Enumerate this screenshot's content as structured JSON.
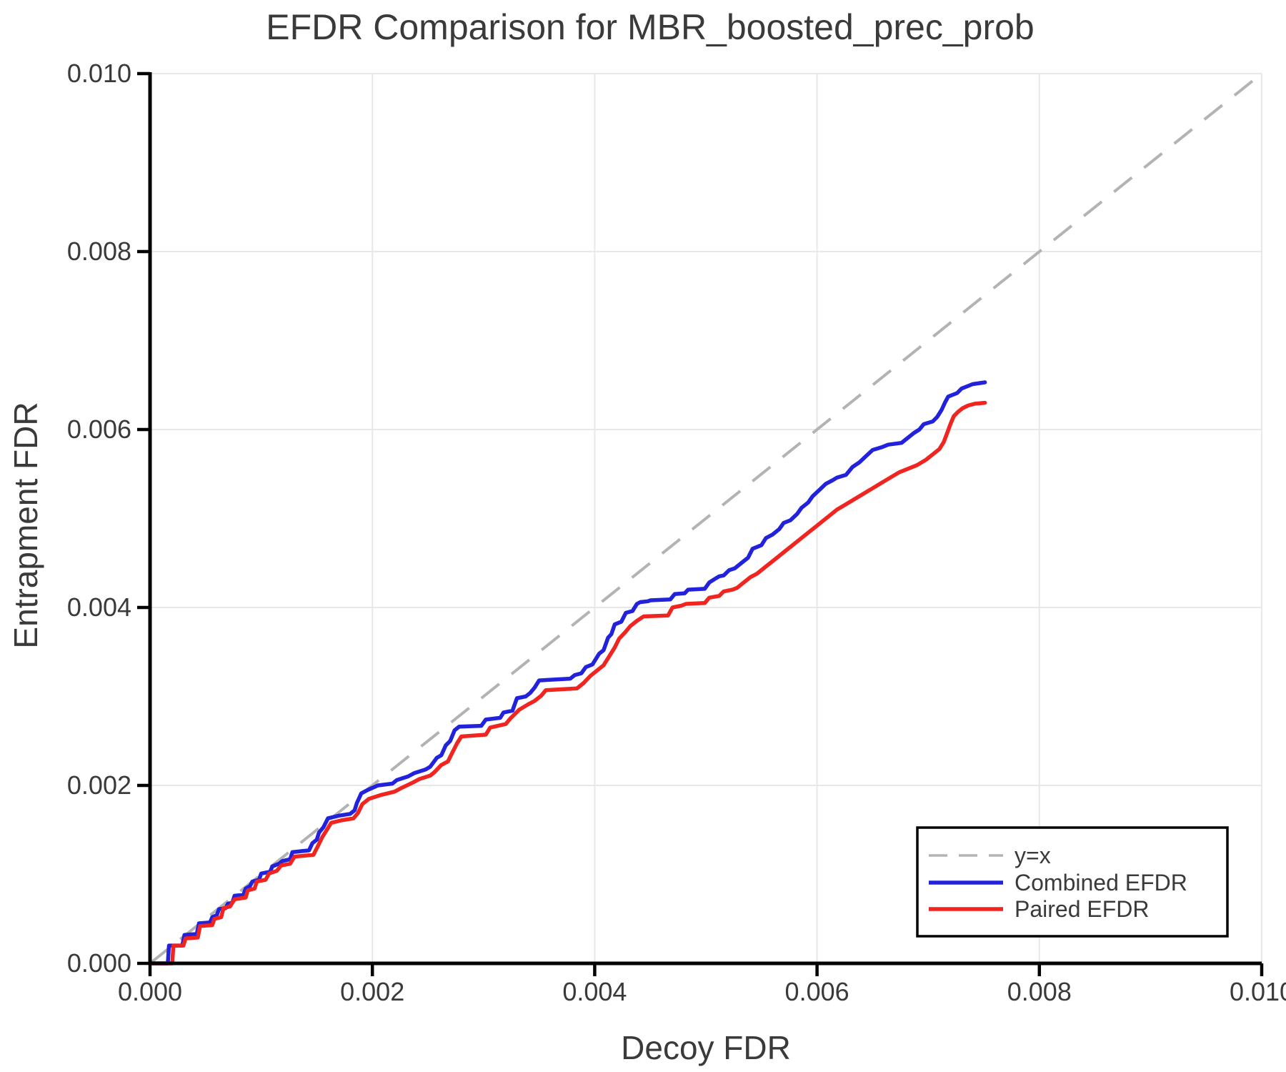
{
  "chart_data": {
    "type": "line",
    "title": "EFDR Comparison for MBR_boosted_prec_prob",
    "xlabel": "Decoy FDR",
    "ylabel": "Entrapment FDR",
    "xlim": [
      0.0,
      0.01
    ],
    "ylim": [
      0.0,
      0.01
    ],
    "grid": true,
    "xticks": [
      0.0,
      0.002,
      0.004,
      0.006,
      0.008,
      0.01
    ],
    "xtick_labels": [
      "0.000",
      "0.002",
      "0.004",
      "0.006",
      "0.008",
      "0.010"
    ],
    "yticks": [
      0.0,
      0.002,
      0.004,
      0.006,
      0.008,
      0.01
    ],
    "ytick_labels": [
      "0.000",
      "0.002",
      "0.004",
      "0.006",
      "0.008",
      "0.010"
    ],
    "colors": {
      "grid": "#e8e8e8",
      "spine": "#000000",
      "text": "#3a3a3a",
      "reference": "#b3b3b3",
      "combined": "#2222dd",
      "paired": "#f02520",
      "legend_border": "#000000",
      "legend_bg": "#ffffff"
    },
    "legend": {
      "position": "lower right",
      "entries": [
        {
          "label": "y=x",
          "color": "#b3b3b3",
          "dashed": true
        },
        {
          "label": "Combined EFDR",
          "color": "#2222dd",
          "dashed": false
        },
        {
          "label": "Paired EFDR",
          "color": "#f02520",
          "dashed": false
        }
      ]
    },
    "series": [
      {
        "name": "y=x",
        "role": "reference",
        "color": "#b3b3b3",
        "dashed": true,
        "points": [
          [
            0.0,
            0.0
          ],
          [
            0.01,
            0.01
          ]
        ]
      },
      {
        "name": "Combined EFDR",
        "role": "data",
        "color": "#2222dd",
        "dashed": false,
        "points": [
          [
            0,
            0
          ],
          [
            0.00016,
            0
          ],
          [
            0.00017,
            0.0002
          ],
          [
            0.00029,
            0.0002
          ],
          [
            0.00031,
            0.00032
          ],
          [
            0.00042,
            0.00033
          ],
          [
            0.00044,
            0.00045
          ],
          [
            0.00054,
            0.00046
          ],
          [
            0.00056,
            0.00052
          ],
          [
            0.0006,
            0.00054
          ],
          [
            0.00062,
            0.00061
          ],
          [
            0.00068,
            0.00062
          ],
          [
            0.0007,
            0.00067
          ],
          [
            0.00074,
            0.00068
          ],
          [
            0.00076,
            0.00076
          ],
          [
            0.00084,
            0.00077
          ],
          [
            0.00086,
            0.00084
          ],
          [
            0.0009,
            0.00087
          ],
          [
            0.00092,
            0.00092
          ],
          [
            0.00098,
            0.00094
          ],
          [
            0.001,
            0.00101
          ],
          [
            0.00108,
            0.00103
          ],
          [
            0.0011,
            0.00109
          ],
          [
            0.00116,
            0.00112
          ],
          [
            0.00119,
            0.00115
          ],
          [
            0.00126,
            0.00117
          ],
          [
            0.00128,
            0.00125
          ],
          [
            0.00143,
            0.00127
          ],
          [
            0.00146,
            0.00135
          ],
          [
            0.0015,
            0.00139
          ],
          [
            0.00152,
            0.00147
          ],
          [
            0.00156,
            0.00153
          ],
          [
            0.0016,
            0.00163
          ],
          [
            0.0017,
            0.00166
          ],
          [
            0.0018,
            0.00168
          ],
          [
            0.00184,
            0.00172
          ],
          [
            0.00186,
            0.0018
          ],
          [
            0.0019,
            0.00191
          ],
          [
            0.00196,
            0.00195
          ],
          [
            0.00205,
            0.002
          ],
          [
            0.00218,
            0.00202
          ],
          [
            0.00222,
            0.00206
          ],
          [
            0.00232,
            0.0021
          ],
          [
            0.00238,
            0.00214
          ],
          [
            0.00248,
            0.00218
          ],
          [
            0.00252,
            0.00221
          ],
          [
            0.00258,
            0.00231
          ],
          [
            0.00262,
            0.00234
          ],
          [
            0.00266,
            0.00245
          ],
          [
            0.0027,
            0.0025
          ],
          [
            0.00274,
            0.00262
          ],
          [
            0.00278,
            0.00266
          ],
          [
            0.00298,
            0.00267
          ],
          [
            0.00302,
            0.00274
          ],
          [
            0.00315,
            0.00276
          ],
          [
            0.00318,
            0.00282
          ],
          [
            0.00326,
            0.00284
          ],
          [
            0.0033,
            0.00298
          ],
          [
            0.00338,
            0.003
          ],
          [
            0.00342,
            0.00304
          ],
          [
            0.00346,
            0.0031
          ],
          [
            0.0035,
            0.00318
          ],
          [
            0.00378,
            0.0032
          ],
          [
            0.00382,
            0.00324
          ],
          [
            0.00388,
            0.00326
          ],
          [
            0.00392,
            0.00333
          ],
          [
            0.00398,
            0.00336
          ],
          [
            0.00404,
            0.00348
          ],
          [
            0.00408,
            0.00352
          ],
          [
            0.00412,
            0.00366
          ],
          [
            0.00415,
            0.0037
          ],
          [
            0.00418,
            0.00381
          ],
          [
            0.00424,
            0.00384
          ],
          [
            0.00428,
            0.00394
          ],
          [
            0.00434,
            0.00396
          ],
          [
            0.00438,
            0.00404
          ],
          [
            0.00441,
            0.00406
          ],
          [
            0.00448,
            0.00407
          ],
          [
            0.0045,
            0.00408
          ],
          [
            0.00468,
            0.00409
          ],
          [
            0.00472,
            0.00415
          ],
          [
            0.00481,
            0.00416
          ],
          [
            0.00484,
            0.0042
          ],
          [
            0.00499,
            0.00421
          ],
          [
            0.00503,
            0.00428
          ],
          [
            0.00508,
            0.00432
          ],
          [
            0.00512,
            0.00435
          ],
          [
            0.00516,
            0.00436
          ],
          [
            0.00521,
            0.00442
          ],
          [
            0.00526,
            0.00444
          ],
          [
            0.0053,
            0.00448
          ],
          [
            0.00538,
            0.00456
          ],
          [
            0.00542,
            0.00466
          ],
          [
            0.0055,
            0.0047
          ],
          [
            0.00554,
            0.00478
          ],
          [
            0.0056,
            0.00482
          ],
          [
            0.00566,
            0.00488
          ],
          [
            0.0057,
            0.00495
          ],
          [
            0.00576,
            0.00498
          ],
          [
            0.00582,
            0.00505
          ],
          [
            0.00586,
            0.00512
          ],
          [
            0.00592,
            0.00518
          ],
          [
            0.00596,
            0.00525
          ],
          [
            0.00602,
            0.00532
          ],
          [
            0.00608,
            0.00539
          ],
          [
            0.00614,
            0.00543
          ],
          [
            0.00618,
            0.00546
          ],
          [
            0.00626,
            0.00549
          ],
          [
            0.00632,
            0.00558
          ],
          [
            0.00638,
            0.00563
          ],
          [
            0.00644,
            0.0057
          ],
          [
            0.0065,
            0.00577
          ],
          [
            0.00658,
            0.0058
          ],
          [
            0.00664,
            0.00583
          ],
          [
            0.00676,
            0.00585
          ],
          [
            0.00682,
            0.00591
          ],
          [
            0.00687,
            0.00596
          ],
          [
            0.00692,
            0.006
          ],
          [
            0.00696,
            0.00606
          ],
          [
            0.00704,
            0.00609
          ],
          [
            0.00708,
            0.00614
          ],
          [
            0.00712,
            0.00622
          ],
          [
            0.00715,
            0.0063
          ],
          [
            0.00718,
            0.00637
          ],
          [
            0.00726,
            0.00641
          ],
          [
            0.0073,
            0.00646
          ],
          [
            0.00736,
            0.00649
          ],
          [
            0.0074,
            0.00651
          ],
          [
            0.00751,
            0.00653
          ]
        ]
      },
      {
        "name": "Paired EFDR",
        "role": "data",
        "color": "#f02520",
        "dashed": false,
        "points": [
          [
            0,
            0
          ],
          [
            0.0002,
            0
          ],
          [
            0.00021,
            0.0002
          ],
          [
            0.0003,
            0.0002
          ],
          [
            0.00032,
            0.00028
          ],
          [
            0.00043,
            0.00029
          ],
          [
            0.00045,
            0.00042
          ],
          [
            0.00056,
            0.00043
          ],
          [
            0.00058,
            0.0005
          ],
          [
            0.00064,
            0.00052
          ],
          [
            0.00066,
            0.00062
          ],
          [
            0.00072,
            0.00064
          ],
          [
            0.00076,
            0.00072
          ],
          [
            0.00086,
            0.00074
          ],
          [
            0.00088,
            0.00082
          ],
          [
            0.00094,
            0.00084
          ],
          [
            0.00096,
            0.00092
          ],
          [
            0.00104,
            0.00094
          ],
          [
            0.00107,
            0.00101
          ],
          [
            0.00114,
            0.00104
          ],
          [
            0.00118,
            0.0011
          ],
          [
            0.00126,
            0.00112
          ],
          [
            0.0013,
            0.0012
          ],
          [
            0.00147,
            0.00122
          ],
          [
            0.00151,
            0.00132
          ],
          [
            0.00155,
            0.00142
          ],
          [
            0.00159,
            0.0015
          ],
          [
            0.00163,
            0.00158
          ],
          [
            0.00173,
            0.00161
          ],
          [
            0.00183,
            0.00163
          ],
          [
            0.00187,
            0.00169
          ],
          [
            0.00191,
            0.00179
          ],
          [
            0.00197,
            0.00185
          ],
          [
            0.00207,
            0.00189
          ],
          [
            0.0022,
            0.00193
          ],
          [
            0.00226,
            0.00197
          ],
          [
            0.00236,
            0.00203
          ],
          [
            0.00242,
            0.00207
          ],
          [
            0.00252,
            0.00211
          ],
          [
            0.00256,
            0.00215
          ],
          [
            0.00262,
            0.00223
          ],
          [
            0.00268,
            0.00227
          ],
          [
            0.00272,
            0.00237
          ],
          [
            0.00276,
            0.00247
          ],
          [
            0.0028,
            0.00255
          ],
          [
            0.00302,
            0.00257
          ],
          [
            0.00306,
            0.00265
          ],
          [
            0.0032,
            0.00269
          ],
          [
            0.00324,
            0.00275
          ],
          [
            0.00332,
            0.00285
          ],
          [
            0.0034,
            0.00291
          ],
          [
            0.00346,
            0.00295
          ],
          [
            0.00352,
            0.00301
          ],
          [
            0.00356,
            0.00307
          ],
          [
            0.00384,
            0.00309
          ],
          [
            0.0039,
            0.00315
          ],
          [
            0.00396,
            0.00323
          ],
          [
            0.00402,
            0.00329
          ],
          [
            0.00408,
            0.00335
          ],
          [
            0.00412,
            0.00343
          ],
          [
            0.00418,
            0.00355
          ],
          [
            0.00422,
            0.00365
          ],
          [
            0.00428,
            0.00373
          ],
          [
            0.00432,
            0.00379
          ],
          [
            0.00438,
            0.00385
          ],
          [
            0.00444,
            0.0039
          ],
          [
            0.00466,
            0.00391
          ],
          [
            0.0047,
            0.004
          ],
          [
            0.00478,
            0.00402
          ],
          [
            0.00482,
            0.00404
          ],
          [
            0.00499,
            0.00405
          ],
          [
            0.00503,
            0.00411
          ],
          [
            0.00512,
            0.00413
          ],
          [
            0.00516,
            0.00418
          ],
          [
            0.00524,
            0.0042
          ],
          [
            0.00528,
            0.00422
          ],
          [
            0.00534,
            0.00428
          ],
          [
            0.0054,
            0.00434
          ],
          [
            0.00546,
            0.00438
          ],
          [
            0.00552,
            0.00444
          ],
          [
            0.00558,
            0.0045
          ],
          [
            0.00564,
            0.00456
          ],
          [
            0.0057,
            0.00462
          ],
          [
            0.00576,
            0.00468
          ],
          [
            0.00582,
            0.00474
          ],
          [
            0.00588,
            0.0048
          ],
          [
            0.00594,
            0.00486
          ],
          [
            0.006,
            0.00492
          ],
          [
            0.00606,
            0.00498
          ],
          [
            0.00612,
            0.00504
          ],
          [
            0.00618,
            0.0051
          ],
          [
            0.00626,
            0.00516
          ],
          [
            0.00634,
            0.00522
          ],
          [
            0.00642,
            0.00528
          ],
          [
            0.0065,
            0.00534
          ],
          [
            0.00658,
            0.0054
          ],
          [
            0.00666,
            0.00546
          ],
          [
            0.00674,
            0.00552
          ],
          [
            0.00682,
            0.00556
          ],
          [
            0.0069,
            0.0056
          ],
          [
            0.00698,
            0.00566
          ],
          [
            0.00704,
            0.00572
          ],
          [
            0.0071,
            0.00578
          ],
          [
            0.00714,
            0.00586
          ],
          [
            0.00717,
            0.00596
          ],
          [
            0.0072,
            0.00606
          ],
          [
            0.00723,
            0.00615
          ],
          [
            0.00727,
            0.0062
          ],
          [
            0.00731,
            0.00624
          ],
          [
            0.00736,
            0.00627
          ],
          [
            0.00742,
            0.00629
          ],
          [
            0.00751,
            0.0063
          ]
        ]
      }
    ]
  }
}
